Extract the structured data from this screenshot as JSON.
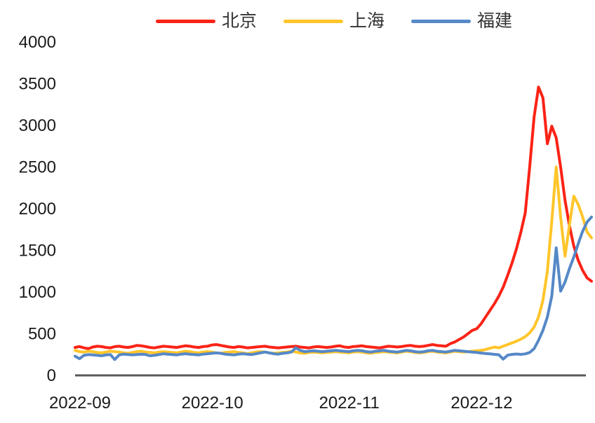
{
  "legend": [
    {
      "id": "beijing",
      "label": "北京",
      "color": "#FB2316"
    },
    {
      "id": "shanghai",
      "label": "上海",
      "color": "#FFC52A"
    },
    {
      "id": "fujian",
      "label": "福建",
      "color": "#5588C7"
    }
  ],
  "chart_data": {
    "type": "line",
    "title": "",
    "xlabel": "",
    "ylabel": "",
    "ylim": [
      0,
      4000
    ],
    "y_ticks": [
      0,
      500,
      1000,
      1500,
      2000,
      2500,
      3000,
      3500,
      4000
    ],
    "x_tick_labels": [
      "2022-09",
      "2022-10",
      "2022-11",
      "2022-12"
    ],
    "x_tick_indices": [
      0,
      30,
      61,
      91
    ],
    "x_range": {
      "start": "2022-09-01",
      "end": "2022-12-27",
      "freq": "daily"
    },
    "grid": false,
    "legend_position": "top-center",
    "axis_color": "#595959",
    "text_color": "#1a1a1a",
    "line_width": 4,
    "series": [
      {
        "name": "北京",
        "color": "#FB2316",
        "values": [
          335,
          345,
          330,
          320,
          340,
          350,
          345,
          335,
          330,
          345,
          350,
          340,
          335,
          345,
          360,
          355,
          345,
          335,
          330,
          340,
          350,
          345,
          340,
          335,
          345,
          355,
          350,
          340,
          335,
          345,
          350,
          365,
          370,
          360,
          350,
          340,
          335,
          345,
          340,
          330,
          335,
          340,
          345,
          350,
          340,
          335,
          330,
          335,
          340,
          345,
          350,
          340,
          335,
          330,
          340,
          345,
          340,
          335,
          340,
          350,
          355,
          340,
          335,
          345,
          350,
          355,
          345,
          340,
          335,
          330,
          340,
          350,
          345,
          340,
          345,
          355,
          360,
          350,
          345,
          350,
          360,
          370,
          360,
          355,
          350,
          380,
          400,
          430,
          460,
          500,
          540,
          560,
          620,
          700,
          780,
          860,
          950,
          1060,
          1200,
          1350,
          1520,
          1720,
          1950,
          2500,
          3100,
          3460,
          3330,
          2780,
          2990,
          2850,
          2500,
          2100,
          1800,
          1550,
          1380,
          1260,
          1170,
          1130
        ]
      },
      {
        "name": "上海",
        "color": "#FFC52A",
        "values": [
          300,
          285,
          280,
          290,
          285,
          275,
          270,
          280,
          290,
          285,
          280,
          270,
          265,
          275,
          285,
          290,
          280,
          275,
          270,
          280,
          285,
          280,
          275,
          270,
          280,
          290,
          285,
          275,
          270,
          280,
          285,
          280,
          270,
          265,
          275,
          280,
          285,
          275,
          270,
          260,
          270,
          280,
          285,
          280,
          270,
          265,
          270,
          275,
          280,
          290,
          280,
          270,
          265,
          275,
          280,
          275,
          270,
          275,
          280,
          285,
          280,
          275,
          270,
          280,
          285,
          280,
          270,
          265,
          275,
          280,
          285,
          280,
          275,
          270,
          280,
          290,
          285,
          275,
          270,
          275,
          285,
          290,
          280,
          275,
          270,
          280,
          290,
          285,
          280,
          285,
          290,
          295,
          300,
          310,
          325,
          340,
          330,
          350,
          370,
          390,
          410,
          435,
          465,
          510,
          580,
          700,
          900,
          1250,
          1850,
          2500,
          1900,
          1430,
          1800,
          2150,
          2050,
          1900,
          1720,
          1650
        ]
      },
      {
        "name": "福建",
        "color": "#5588C7",
        "values": [
          230,
          200,
          240,
          250,
          245,
          240,
          235,
          245,
          250,
          190,
          245,
          255,
          250,
          245,
          250,
          255,
          250,
          235,
          240,
          250,
          260,
          255,
          250,
          245,
          255,
          260,
          255,
          250,
          245,
          255,
          260,
          265,
          270,
          265,
          255,
          250,
          245,
          255,
          260,
          255,
          250,
          260,
          270,
          280,
          270,
          260,
          255,
          265,
          270,
          280,
          330,
          300,
          285,
          290,
          295,
          290,
          285,
          290,
          295,
          300,
          295,
          290,
          285,
          295,
          300,
          295,
          285,
          280,
          290,
          295,
          300,
          290,
          285,
          280,
          290,
          300,
          295,
          285,
          280,
          285,
          295,
          300,
          290,
          285,
          280,
          290,
          300,
          295,
          290,
          285,
          280,
          275,
          268,
          262,
          258,
          252,
          248,
          195,
          242,
          252,
          256,
          252,
          258,
          275,
          320,
          420,
          540,
          700,
          950,
          1530,
          1010,
          1120,
          1280,
          1420,
          1580,
          1730,
          1840,
          1900
        ]
      }
    ]
  }
}
